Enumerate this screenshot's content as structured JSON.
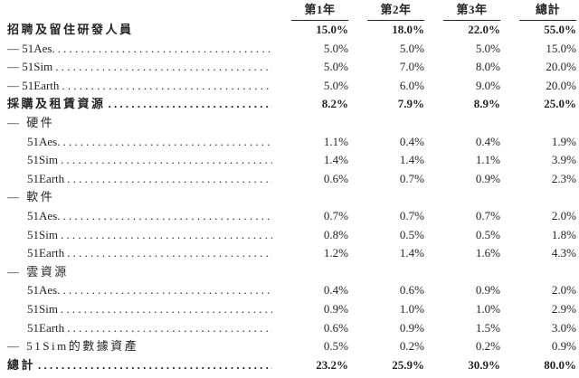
{
  "table": {
    "columns": [
      "第1年",
      "第2年",
      "第3年",
      "總計"
    ],
    "rows": [
      {
        "label": "招聘及留住研發人員",
        "bold": true,
        "indent": 0,
        "dots": false,
        "values": [
          "15.0%",
          "18.0%",
          "22.0%",
          "55.0%"
        ]
      },
      {
        "label": "— 51Aes.",
        "bold": false,
        "indent": 0,
        "dots": true,
        "values": [
          "5.0%",
          "5.0%",
          "5.0%",
          "15.0%"
        ]
      },
      {
        "label": "— 51Sim",
        "bold": false,
        "indent": 0,
        "dots": true,
        "values": [
          "5.0%",
          "7.0%",
          "8.0%",
          "20.0%"
        ]
      },
      {
        "label": "— 51Earth",
        "bold": false,
        "indent": 0,
        "dots": true,
        "values": [
          "5.0%",
          "6.0%",
          "9.0%",
          "20.0%"
        ]
      },
      {
        "label": "採購及租賃資源",
        "bold": true,
        "indent": 0,
        "dots": true,
        "values": [
          "8.2%",
          "7.9%",
          "8.9%",
          "25.0%"
        ]
      },
      {
        "label": "— 硬件",
        "bold": false,
        "indent": 0,
        "dots": false,
        "values": [
          "",
          "",
          "",
          ""
        ]
      },
      {
        "label": "51Aes.",
        "bold": false,
        "indent": 1,
        "dots": true,
        "values": [
          "1.1%",
          "0.4%",
          "0.4%",
          "1.9%"
        ]
      },
      {
        "label": "51Sim",
        "bold": false,
        "indent": 1,
        "dots": true,
        "values": [
          "1.4%",
          "1.4%",
          "1.1%",
          "3.9%"
        ]
      },
      {
        "label": "51Earth",
        "bold": false,
        "indent": 1,
        "dots": true,
        "values": [
          "0.6%",
          "0.7%",
          "0.9%",
          "2.3%"
        ]
      },
      {
        "label": "— 軟件",
        "bold": false,
        "indent": 0,
        "dots": false,
        "values": [
          "",
          "",
          "",
          ""
        ]
      },
      {
        "label": "51Aes.",
        "bold": false,
        "indent": 1,
        "dots": true,
        "values": [
          "0.7%",
          "0.7%",
          "0.7%",
          "2.0%"
        ]
      },
      {
        "label": "51Sim",
        "bold": false,
        "indent": 1,
        "dots": true,
        "values": [
          "0.8%",
          "0.5%",
          "0.5%",
          "1.8%"
        ]
      },
      {
        "label": "51Earth",
        "bold": false,
        "indent": 1,
        "dots": true,
        "values": [
          "1.2%",
          "1.4%",
          "1.6%",
          "4.3%"
        ]
      },
      {
        "label": "— 雲資源",
        "bold": false,
        "indent": 0,
        "dots": false,
        "values": [
          "",
          "",
          "",
          ""
        ]
      },
      {
        "label": "51Aes.",
        "bold": false,
        "indent": 1,
        "dots": true,
        "values": [
          "0.4%",
          "0.6%",
          "0.9%",
          "2.0%"
        ]
      },
      {
        "label": "51Sim",
        "bold": false,
        "indent": 1,
        "dots": true,
        "values": [
          "0.9%",
          "1.0%",
          "1.0%",
          "2.9%"
        ]
      },
      {
        "label": "51Earth",
        "bold": false,
        "indent": 1,
        "dots": true,
        "values": [
          "0.6%",
          "0.9%",
          "1.5%",
          "3.0%"
        ]
      },
      {
        "label": "— 51Sim的數據資產",
        "bold": false,
        "indent": 0,
        "dots": false,
        "values": [
          "0.5%",
          "0.2%",
          "0.2%",
          "0.9%"
        ]
      },
      {
        "label": "總計",
        "bold": true,
        "indent": 0,
        "dots": true,
        "values": [
          "23.2%",
          "25.9%",
          "30.9%",
          "80.0%"
        ]
      }
    ]
  }
}
